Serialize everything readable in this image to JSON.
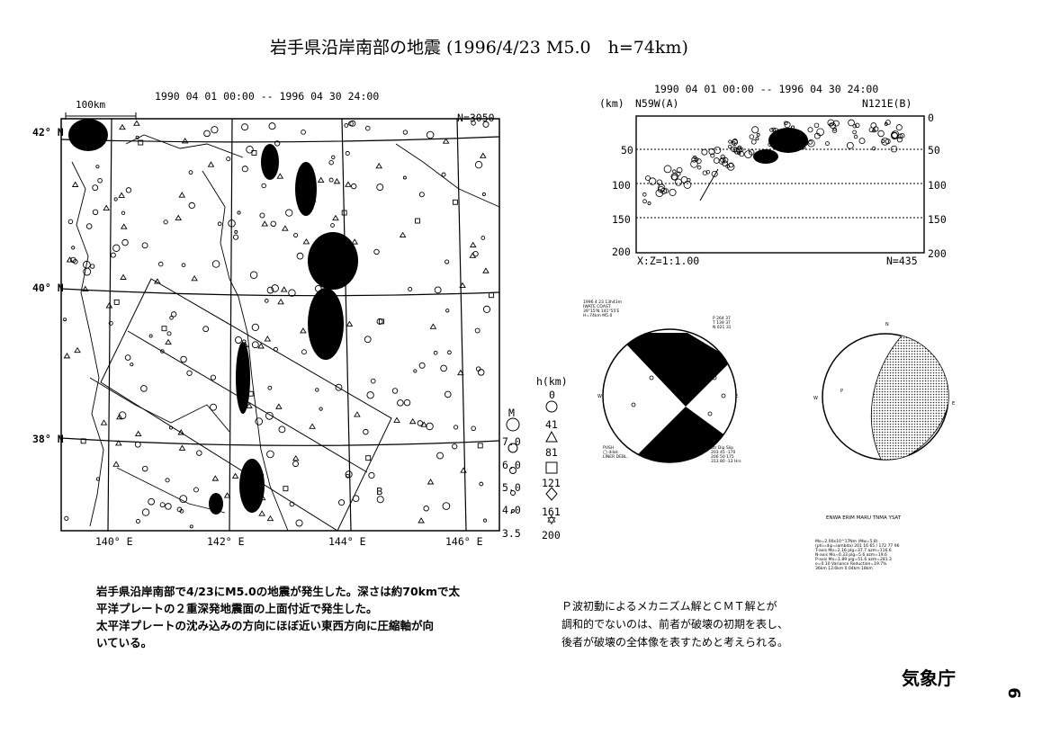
{
  "title": "岩手県沿岸南部の地震 (1996/4/23 M5.0　h=74km)",
  "map": {
    "period": "1990 04 01 00:00 -- 1996 04 30 24:00",
    "scale_label": "100km",
    "count": "N=3050",
    "lat_labels": [
      "42° N",
      "40° N",
      "38° N"
    ],
    "lon_labels": [
      "140° E",
      "142° E",
      "144° E",
      "146° E"
    ],
    "section_a": "A",
    "section_b": "B"
  },
  "legend": {
    "depth_title": "h(km)",
    "depths": [
      "0",
      "41",
      "81",
      "121",
      "161",
      "200"
    ],
    "mag_title": "M",
    "mags": [
      "7.0",
      "6.0",
      "5.0",
      "4.0",
      "3.5"
    ]
  },
  "section": {
    "period": "1990 04 01 00:00 -- 1996 04 30 24:00",
    "unit": "(km)",
    "left_label": "N59W(A)",
    "right_label": "N121E(B)",
    "depth_ticks": [
      "0",
      "50",
      "100",
      "150",
      "200"
    ],
    "scale_note": "X:Z=1:1.00",
    "count": "N=435"
  },
  "mechanism": {
    "caption": "ENWA ERIM MARU TNMA YSAT"
  },
  "text_left": [
    "岩手県沿岸南部で4/23にM5.0の地震が発生した。深さは約70kmで太",
    "平洋プレートの２重深発地震面の上面付近で発生した。",
    "太平洋プレートの沈み込みの方向にほぼ近い東西方向に圧縮軸が向",
    "いている。"
  ],
  "text_right": [
    "Ｐ波初動によるメカニズム解とＣＭＴ解とが",
    "調和的でないのは、前者が破壊の初期を表し、",
    "後者が破壊の全体像を表すためと考えられる。"
  ],
  "agency": "気象庁",
  "page_number": "6"
}
